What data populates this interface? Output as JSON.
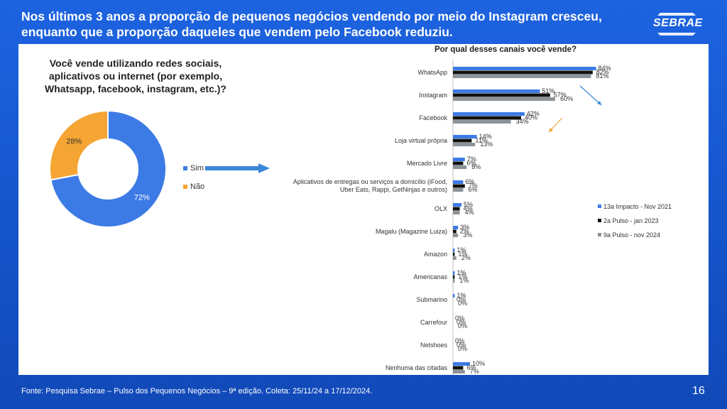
{
  "header": {
    "title": "Nos últimos 3 anos a proporção de pequenos negócios vendendo por meio do Instagram cresceu, enquanto que a proporção daqueles que vendem pelo Facebook reduziu.",
    "logo_text": "SEBRAE"
  },
  "colors": {
    "blue": "#3c7be6",
    "orange": "#f5a533",
    "black": "#111111",
    "gray": "#8c9398",
    "arrow_blue": "#3a86d9",
    "arrow_orange": "#f0a538"
  },
  "pie_chart": {
    "question": "Você vende utilizando redes sociais, aplicativos ou internet (por exemplo, Whatsapp, facebook, instagram, etc.)?",
    "chart_data": {
      "type": "pie",
      "labels": [
        "Sim",
        "Não"
      ],
      "values": [
        72,
        28
      ],
      "value_labels": [
        "72%",
        "28%"
      ],
      "colors": [
        "#3c7be6",
        "#f5a533"
      ],
      "donut": true
    }
  },
  "bar_chart": {
    "chart_data": {
      "type": "bar",
      "orientation": "horizontal",
      "title": "Por qual desses canais você vende?",
      "categories": [
        "WhatsApp",
        "Instagram",
        "Facebook",
        "Loja virtual própria",
        "Mercado Livre",
        "Aplicativos de entregas ou serviços a domicílio (iFood, Uber Eats, Rappi, GetNinjas e outros)",
        "OLX",
        "Magalu (Magazine Luiza)",
        "Amazon",
        "Americanas",
        "Submarino",
        "Carrefour",
        "Netshoes",
        "Nenhuma das citadas"
      ],
      "series": [
        {
          "name": "13a Impacto - Nov 2021",
          "color": "#3c7be6",
          "values": [
            84,
            51,
            42,
            14,
            7,
            6,
            5,
            3,
            1,
            1,
            1,
            0,
            0,
            10
          ]
        },
        {
          "name": "2a Pulso - jan 2023",
          "color": "#111111",
          "values": [
            82,
            57,
            40,
            11,
            6,
            7,
            4,
            2,
            1,
            1,
            0,
            0,
            0,
            6
          ]
        },
        {
          "name": "9a Pulso - nov 2024",
          "color": "#8c9398",
          "values": [
            81,
            60,
            34,
            13,
            8,
            6,
            4,
            3,
            2,
            1,
            0,
            0,
            0,
            7
          ]
        }
      ],
      "value_suffix": "%",
      "xlim": [
        0,
        100
      ],
      "legend": "right"
    }
  },
  "footer": {
    "source": "Fonte: Pesquisa Sebrae – Pulso dos Pequenos Negócios – 9ª edição. Coleta: 25/11/24 a 17/12/2024.",
    "page": "16"
  }
}
